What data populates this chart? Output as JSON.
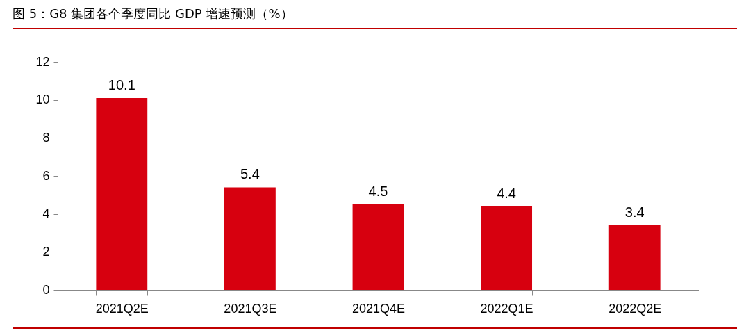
{
  "chart_data": {
    "type": "bar",
    "title": "图 5：G8 集团各个季度同比 GDP 增速预测（%）",
    "categories": [
      "2021Q2E",
      "2021Q3E",
      "2021Q4E",
      "2022Q1E",
      "2022Q2E"
    ],
    "values": [
      10.1,
      5.4,
      4.5,
      4.4,
      3.4
    ],
    "color": "#d7000f",
    "ylim": [
      0,
      12
    ],
    "yticks": [
      0,
      2,
      4,
      6,
      8,
      10,
      12
    ],
    "grid": false,
    "data_labels": true
  }
}
